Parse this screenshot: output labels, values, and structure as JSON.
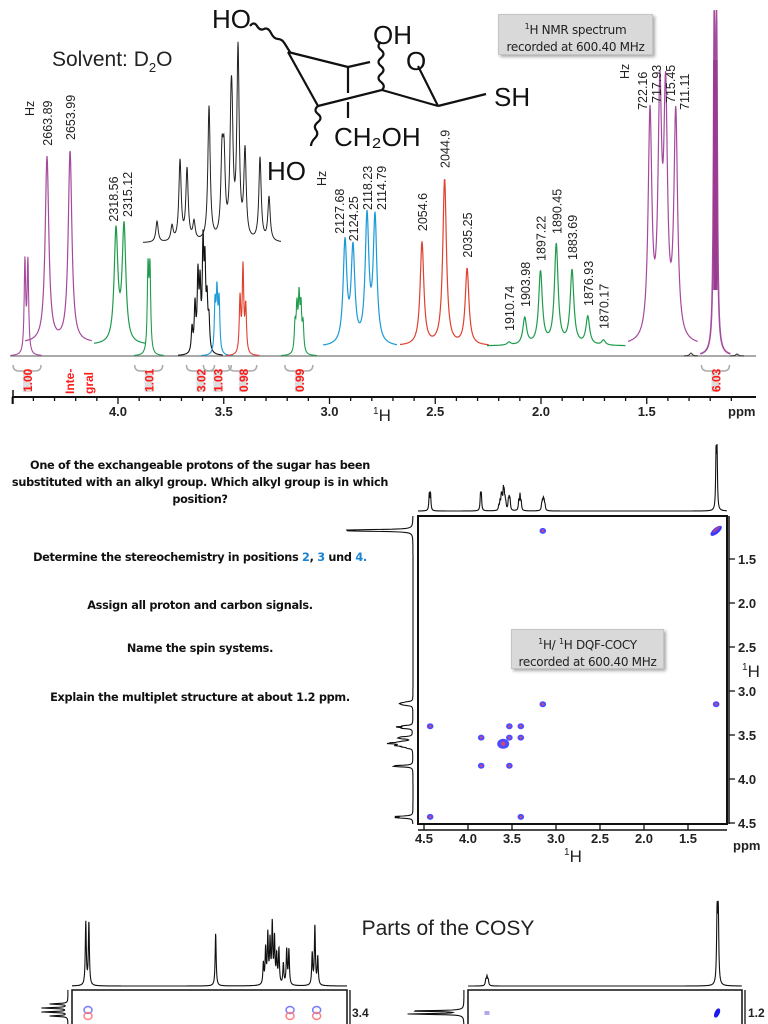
{
  "header": {
    "solvent_label": "Solvent: D",
    "solvent_sub": "2",
    "solvent_end": "O",
    "info_1d_line1_sup": "1",
    "info_1d_line1": "H NMR spectrum",
    "info_1d_line2": "recorded at 600.40 MHz"
  },
  "structure": {
    "ho_top": "HO",
    "oh_top": "OH",
    "ring_o": "O",
    "sh": "SH",
    "ch2oh": "CH₂OH",
    "ho_bottom": "HO"
  },
  "questions": {
    "q1_line1": "One of the exchangeable protons of the sugar has been",
    "q1_line2": "substituted with an alkyl group. Which alkyl group is in which",
    "q1_line3": "position?",
    "q2_prefix": "Determine the stereochemistry in positions ",
    "q2_pos1": "2",
    "q2_sep1": ", ",
    "q2_pos2": "3",
    "q2_sep2": " und ",
    "q2_pos3": "4.",
    "q3": "Assign all proton and carbon signals.",
    "q4": "Name the spin systems.",
    "q5": "Explain the multiplet structure at about 1.2 ppm."
  },
  "cosy_info": {
    "line1_sup1": "1",
    "line1_a": "H/ ",
    "line1_sup2": "1",
    "line1_b": "H DQF-COCY",
    "line2": "recorded at 600.40 MHz"
  },
  "parts_title": "Parts of the COSY",
  "colors": {
    "purple": "#a44a9c",
    "green": "#1e9c4c",
    "blue": "#1a9ad6",
    "red": "#e0402e",
    "black": "#111111",
    "integral": "#ff1a1a",
    "cross_blue": "#3a3aff",
    "cross_red": "#ff4a4a",
    "infobox": "#d9d9d9"
  },
  "chart_data": [
    {
      "type": "line",
      "title": "",
      "xlabel": "1H",
      "xlabel_sup": "1",
      "xlabel_main": "H",
      "x_unit": "ppm",
      "xlim": [
        4.5,
        1.0
      ],
      "xticks": [
        "4.0",
        "3.5",
        "3.0",
        "2.5",
        "2.0",
        "1.5"
      ],
      "xtick_values": [
        4.0,
        3.5,
        3.0,
        2.5,
        2.0,
        1.5
      ],
      "spectrum_groups": [
        {
          "color": "purple",
          "peaks": [
            [
              4.44,
              0.3
            ],
            [
              4.426,
              0.3
            ]
          ]
        },
        {
          "color": "green",
          "peaks": [
            [
              3.858,
              0.27
            ],
            [
              3.849,
              0.27
            ]
          ]
        },
        {
          "color": "black",
          "peaks": [
            [
              3.65,
              0.08
            ],
            [
              3.636,
              0.15
            ],
            [
              3.622,
              0.24
            ],
            [
              3.612,
              0.2
            ],
            [
              3.598,
              0.33
            ],
            [
              3.589,
              0.26
            ],
            [
              3.579,
              0.15
            ],
            [
              3.57,
              0.1
            ]
          ]
        },
        {
          "color": "blue",
          "peaks": [
            [
              3.541,
              0.16
            ],
            [
              3.532,
              0.19
            ],
            [
              3.522,
              0.17
            ]
          ]
        },
        {
          "color": "red",
          "peaks": [
            [
              3.423,
              0.18
            ],
            [
              3.409,
              0.28
            ],
            [
              3.396,
              0.15
            ]
          ]
        },
        {
          "color": "green",
          "peaks": [
            [
              3.163,
              0.09
            ],
            [
              3.154,
              0.14
            ],
            [
              3.144,
              0.17
            ],
            [
              3.135,
              0.14
            ],
            [
              3.125,
              0.09
            ]
          ]
        },
        {
          "color": "purple",
          "peaks": [
            [
              1.181,
              1.0
            ],
            [
              1.17,
              1.0
            ]
          ]
        }
      ],
      "expansions": [
        {
          "color": "purple",
          "show_hz": true,
          "hz": [
            2663.89,
            2653.99
          ],
          "intensity": [
            0.97,
            1.0
          ]
        },
        {
          "color": "green",
          "show_hz": false,
          "hz": [
            2318.56,
            2315.12
          ],
          "intensity": [
            0.96,
            1.0
          ]
        },
        {
          "color": "blue",
          "show_hz": true,
          "hz": [
            2127.68,
            2124.25,
            2118.23,
            2114.79
          ],
          "intensity": [
            0.81,
            0.75,
            1.0,
            1.0
          ]
        },
        {
          "color": "red",
          "show_hz": false,
          "hz": [
            2054.6,
            2044.9,
            2035.25
          ],
          "intensity": [
            0.62,
            1.0,
            0.46
          ]
        },
        {
          "color": "green",
          "show_hz": false,
          "hz": [
            1910.74,
            1903.98,
            1897.22,
            1890.45,
            1883.69,
            1876.93,
            1870.17
          ],
          "intensity": [
            0.03,
            0.27,
            0.73,
            1.0,
            0.74,
            0.28,
            0.05
          ]
        },
        {
          "color": "purple",
          "show_hz": true,
          "hz": [
            722.16,
            717.93,
            715.45,
            711.11
          ],
          "intensity": [
            0.97,
            1.0,
            1.0,
            0.97
          ]
        }
      ],
      "hz_label": "Hz",
      "integrals": [
        {
          "ppm": 4.43,
          "value": "1.00"
        },
        {
          "ppm": 3.855,
          "value": "1.01"
        },
        {
          "ppm": 3.61,
          "value": "3.02"
        },
        {
          "ppm": 3.53,
          "value": "1.03"
        },
        {
          "ppm": 3.41,
          "value": "0.98"
        },
        {
          "ppm": 3.145,
          "value": "0.99"
        },
        {
          "ppm": 1.175,
          "value": "6.03"
        }
      ],
      "integral_word_1": "Inte-",
      "integral_word_2": "gral"
    },
    {
      "type": "heatmap",
      "title": "",
      "xlabel_sup": "1",
      "xlabel_main": "H",
      "ylabel_sup": "1",
      "ylabel_main": "H",
      "unit": "ppm",
      "xlim": [
        4.5,
        1.07
      ],
      "ylim": [
        1.01,
        4.5
      ],
      "xticks": [
        "4.5",
        "4.0",
        "3.5",
        "3.0",
        "2.5",
        "2.0",
        "1.5"
      ],
      "xtick_values": [
        4.5,
        4.0,
        3.5,
        3.0,
        2.5,
        2.0,
        1.5
      ],
      "yticks": [
        "1.5",
        "2.0",
        "2.5",
        "3.0",
        "3.5",
        "4.0",
        "4.5"
      ],
      "ytick_values": [
        1.5,
        2.0,
        2.5,
        3.0,
        3.5,
        4.0,
        4.5
      ],
      "cross_peaks": [
        [
          4.43,
          4.43
        ],
        [
          3.4,
          4.43
        ],
        [
          4.43,
          3.4
        ],
        [
          3.53,
          3.4
        ],
        [
          3.4,
          3.4
        ],
        [
          3.85,
          3.53
        ],
        [
          3.53,
          3.53
        ],
        [
          3.4,
          3.53
        ],
        [
          3.6,
          3.6
        ],
        [
          3.85,
          3.85
        ],
        [
          3.53,
          3.85
        ],
        [
          3.15,
          1.18
        ],
        [
          1.18,
          1.18
        ],
        [
          3.15,
          3.15
        ],
        [
          1.18,
          3.15
        ]
      ]
    },
    {
      "type": "heatmap",
      "title": "Parts of the COSY",
      "panels": [
        {
          "xlim": [
            4.5,
            3.27
          ],
          "ytick": "3.4",
          "cross_peaks": [
            [
              4.43,
              3.4
            ],
            [
              3.52,
              3.4
            ],
            [
              3.4,
              3.4
            ]
          ]
        },
        {
          "xlim": [
            3.31,
            1.0
          ],
          "ytick": "1.2",
          "cross_peaks": [
            [
              3.15,
              1.2
            ],
            [
              1.18,
              1.2
            ]
          ]
        }
      ]
    }
  ]
}
